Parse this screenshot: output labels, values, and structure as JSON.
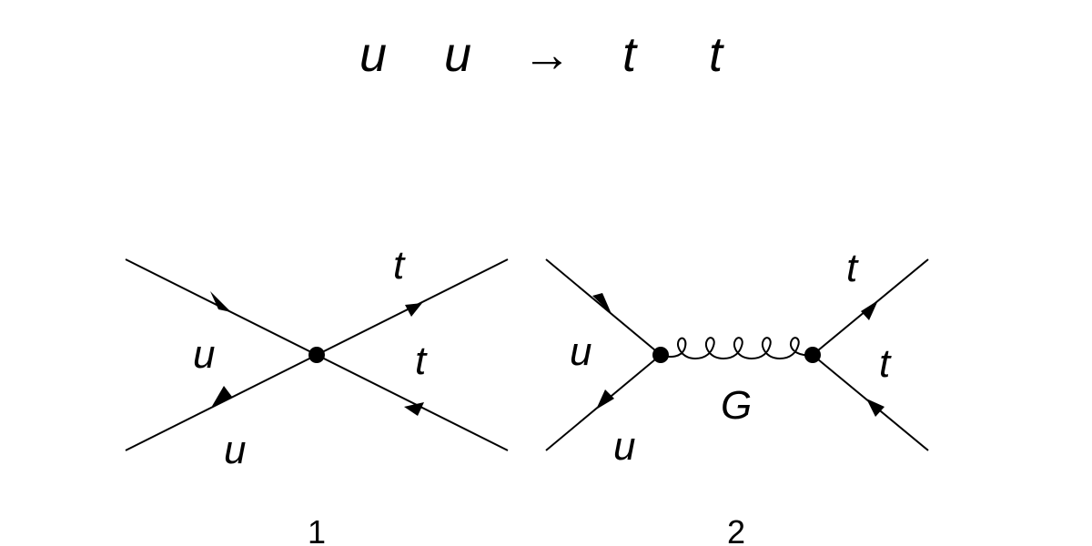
{
  "process": {
    "in1": "u",
    "in2": "u",
    "arrow": "→",
    "out1": "t",
    "out2": "t"
  },
  "diagram1": {
    "number": "1",
    "label_in_upper": "u",
    "label_in_lower": "u",
    "label_out_upper": "t",
    "label_out_lower": "t"
  },
  "diagram2": {
    "number": "2",
    "label_in_upper": "u",
    "label_in_lower": "u",
    "label_out_upper": "t",
    "label_out_lower": "t",
    "label_propagator": "G"
  }
}
